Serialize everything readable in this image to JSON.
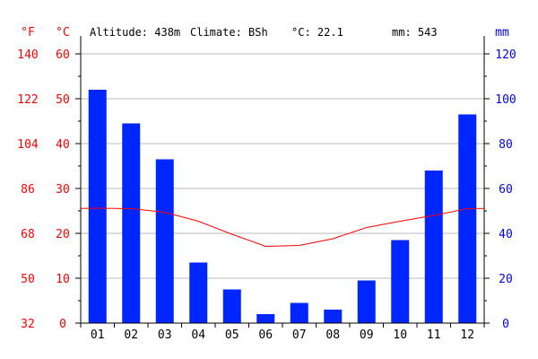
{
  "header": {
    "altitude": "Altitude: 438m",
    "climate": "Climate: BSh",
    "temp": "°C: 22.1",
    "precip": "mm: 543"
  },
  "units": {
    "fahrenheit": "°F",
    "celsius": "°C",
    "mm": "mm"
  },
  "colors": {
    "bars": "#0026ff",
    "temperature_line": "#ff0000",
    "left_axis": "#ff0000",
    "right_axis": "#0000ff",
    "grid": "#bbbbbb"
  },
  "chart_data": {
    "type": "bar",
    "categories": [
      "01",
      "02",
      "03",
      "04",
      "05",
      "06",
      "07",
      "08",
      "09",
      "10",
      "11",
      "12"
    ],
    "series": [
      {
        "unit": "mm",
        "kind": "bar",
        "values": [
          104,
          89,
          73,
          27,
          15,
          4,
          9,
          6,
          19,
          37,
          68,
          93
        ]
      },
      {
        "unit": "°C",
        "kind": "line",
        "values": [
          25.6,
          25.5,
          24.7,
          22.7,
          19.8,
          17.1,
          17.3,
          18.8,
          21.3,
          22.7,
          24.0,
          25.5
        ]
      }
    ],
    "yaxis_celsius": {
      "ylim": [
        0,
        60
      ],
      "ticks": [
        0,
        10,
        20,
        30,
        40,
        50,
        60
      ]
    },
    "yaxis_fahrenheit": {
      "ylim": [
        32,
        140
      ],
      "ticks": [
        32,
        50,
        68,
        86,
        104,
        122,
        140
      ]
    },
    "yaxis_mm": {
      "ylim": [
        0,
        120
      ],
      "ticks": [
        0,
        20,
        40,
        60,
        80,
        100,
        120
      ]
    },
    "grid": true
  }
}
